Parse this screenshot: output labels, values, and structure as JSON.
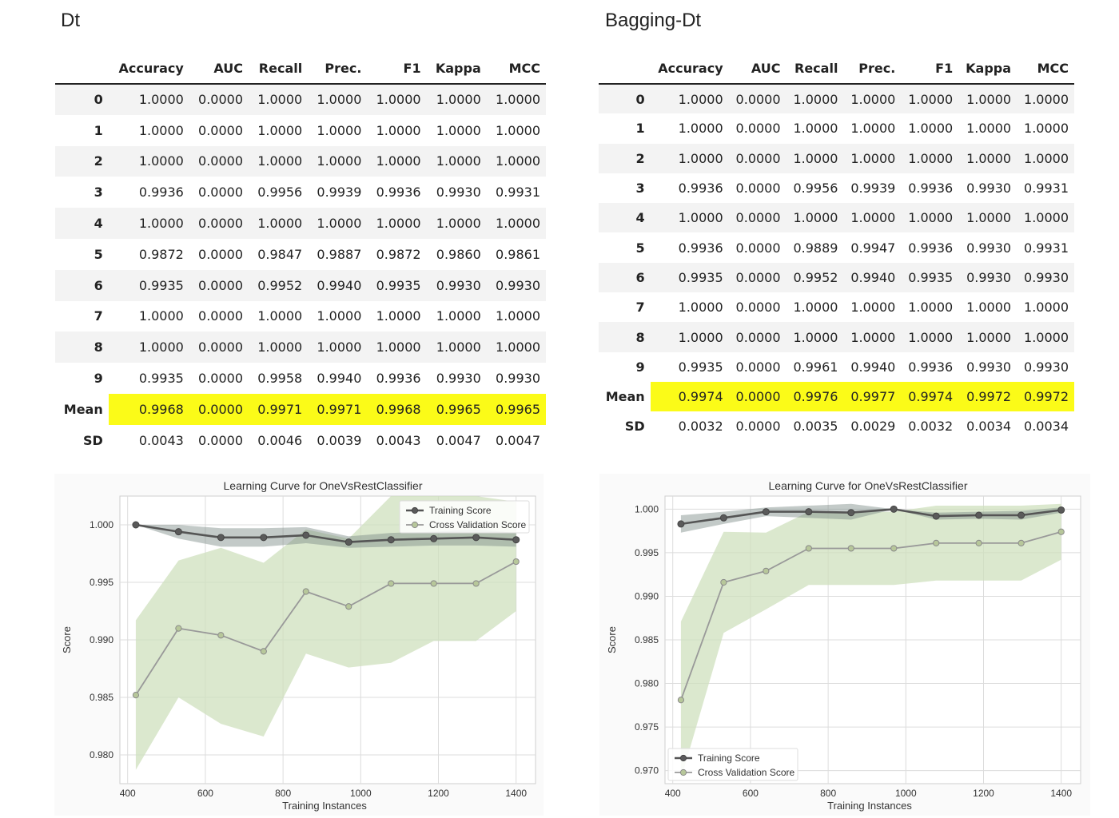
{
  "panels": [
    {
      "title": "Dt",
      "table": {
        "columns": [
          "",
          "Accuracy",
          "AUC",
          "Recall",
          "Prec.",
          "F1",
          "Kappa",
          "MCC"
        ],
        "rows": [
          [
            "0",
            "1.0000",
            "0.0000",
            "1.0000",
            "1.0000",
            "1.0000",
            "1.0000",
            "1.0000"
          ],
          [
            "1",
            "1.0000",
            "0.0000",
            "1.0000",
            "1.0000",
            "1.0000",
            "1.0000",
            "1.0000"
          ],
          [
            "2",
            "1.0000",
            "0.0000",
            "1.0000",
            "1.0000",
            "1.0000",
            "1.0000",
            "1.0000"
          ],
          [
            "3",
            "0.9936",
            "0.0000",
            "0.9956",
            "0.9939",
            "0.9936",
            "0.9930",
            "0.9931"
          ],
          [
            "4",
            "1.0000",
            "0.0000",
            "1.0000",
            "1.0000",
            "1.0000",
            "1.0000",
            "1.0000"
          ],
          [
            "5",
            "0.9872",
            "0.0000",
            "0.9847",
            "0.9887",
            "0.9872",
            "0.9860",
            "0.9861"
          ],
          [
            "6",
            "0.9935",
            "0.0000",
            "0.9952",
            "0.9940",
            "0.9935",
            "0.9930",
            "0.9930"
          ],
          [
            "7",
            "1.0000",
            "0.0000",
            "1.0000",
            "1.0000",
            "1.0000",
            "1.0000",
            "1.0000"
          ],
          [
            "8",
            "1.0000",
            "0.0000",
            "1.0000",
            "1.0000",
            "1.0000",
            "1.0000",
            "1.0000"
          ],
          [
            "9",
            "0.9935",
            "0.0000",
            "0.9958",
            "0.9940",
            "0.9936",
            "0.9930",
            "0.9930"
          ],
          [
            "Mean",
            "0.9968",
            "0.0000",
            "0.9971",
            "0.9971",
            "0.9968",
            "0.9965",
            "0.9965"
          ],
          [
            "SD",
            "0.0043",
            "0.0000",
            "0.0046",
            "0.0039",
            "0.0043",
            "0.0047",
            "0.0047"
          ]
        ],
        "highlight_row": "Mean",
        "highlight_color": "#fbfb18"
      }
    },
    {
      "title": "Bagging-Dt",
      "table": {
        "columns": [
          "",
          "Accuracy",
          "AUC",
          "Recall",
          "Prec.",
          "F1",
          "Kappa",
          "MCC"
        ],
        "rows": [
          [
            "0",
            "1.0000",
            "0.0000",
            "1.0000",
            "1.0000",
            "1.0000",
            "1.0000",
            "1.0000"
          ],
          [
            "1",
            "1.0000",
            "0.0000",
            "1.0000",
            "1.0000",
            "1.0000",
            "1.0000",
            "1.0000"
          ],
          [
            "2",
            "1.0000",
            "0.0000",
            "1.0000",
            "1.0000",
            "1.0000",
            "1.0000",
            "1.0000"
          ],
          [
            "3",
            "0.9936",
            "0.0000",
            "0.9956",
            "0.9939",
            "0.9936",
            "0.9930",
            "0.9931"
          ],
          [
            "4",
            "1.0000",
            "0.0000",
            "1.0000",
            "1.0000",
            "1.0000",
            "1.0000",
            "1.0000"
          ],
          [
            "5",
            "0.9936",
            "0.0000",
            "0.9889",
            "0.9947",
            "0.9936",
            "0.9930",
            "0.9931"
          ],
          [
            "6",
            "0.9935",
            "0.0000",
            "0.9952",
            "0.9940",
            "0.9935",
            "0.9930",
            "0.9930"
          ],
          [
            "7",
            "1.0000",
            "0.0000",
            "1.0000",
            "1.0000",
            "1.0000",
            "1.0000",
            "1.0000"
          ],
          [
            "8",
            "1.0000",
            "0.0000",
            "1.0000",
            "1.0000",
            "1.0000",
            "1.0000",
            "1.0000"
          ],
          [
            "9",
            "0.9935",
            "0.0000",
            "0.9961",
            "0.9940",
            "0.9936",
            "0.9930",
            "0.9930"
          ],
          [
            "Mean",
            "0.9974",
            "0.0000",
            "0.9976",
            "0.9977",
            "0.9974",
            "0.9972",
            "0.9972"
          ],
          [
            "SD",
            "0.0032",
            "0.0000",
            "0.0035",
            "0.0029",
            "0.0032",
            "0.0034",
            "0.0034"
          ]
        ],
        "highlight_row": "Mean",
        "highlight_color": "#fbfb18"
      }
    }
  ],
  "chart_data": [
    {
      "type": "line",
      "title": "Learning Curve for OneVsRestClassifier",
      "xlabel": "Training Instances",
      "ylabel": "Score",
      "xlim": [
        380,
        1450
      ],
      "ylim": [
        0.9775,
        1.0025
      ],
      "xticks": [
        400,
        600,
        800,
        1000,
        1200,
        1400
      ],
      "yticks": [
        0.98,
        0.985,
        0.99,
        0.995,
        1.0
      ],
      "ytick_labels": [
        "0.980",
        "0.985",
        "0.990",
        "0.995",
        "1.000"
      ],
      "grid": true,
      "legend_position": "top-right",
      "x": [
        421,
        531,
        640,
        750,
        859,
        969,
        1078,
        1188,
        1297,
        1400
      ],
      "series": [
        {
          "name": "Training Score",
          "color": "#555555",
          "values": [
            1.0,
            0.9994,
            0.9989,
            0.9989,
            0.9991,
            0.9985,
            0.9987,
            0.9988,
            0.9989,
            0.9987
          ],
          "band_lower": [
            1.0,
            0.9988,
            0.9981,
            0.9981,
            0.9984,
            0.998,
            0.9981,
            0.9982,
            0.9982,
            0.9981
          ],
          "band_upper": [
            1.0,
            1.0,
            0.9997,
            0.9997,
            0.9998,
            0.999,
            0.9993,
            0.9994,
            0.9996,
            0.9993
          ],
          "band_color": "#7a8a84"
        },
        {
          "name": "Cross Validation Score",
          "color": "#999999",
          "values": [
            0.9852,
            0.991,
            0.9904,
            0.989,
            0.9942,
            0.9929,
            0.9949,
            0.9949,
            0.9949,
            0.9968
          ],
          "band_lower": [
            0.9787,
            0.985,
            0.9827,
            0.9816,
            0.9888,
            0.9876,
            0.988,
            0.9899,
            0.9899,
            0.9925
          ],
          "band_upper": [
            0.9917,
            0.9969,
            0.998,
            0.9967,
            0.9996,
            0.9988,
            1.0025,
            1.0025,
            1.0025,
            1.002
          ],
          "band_color": "#cfe0bd"
        }
      ]
    },
    {
      "type": "line",
      "title": "Learning Curve for OneVsRestClassifier",
      "xlabel": "Training Instances",
      "ylabel": "Score",
      "xlim": [
        380,
        1450
      ],
      "ylim": [
        0.9685,
        1.0015
      ],
      "xticks": [
        400,
        600,
        800,
        1000,
        1200,
        1400
      ],
      "yticks": [
        0.97,
        0.975,
        0.98,
        0.985,
        0.99,
        0.995,
        1.0
      ],
      "ytick_labels": [
        "0.970",
        "0.975",
        "0.980",
        "0.985",
        "0.990",
        "0.995",
        "1.000"
      ],
      "grid": true,
      "legend_position": "bottom-left",
      "x": [
        421,
        531,
        640,
        750,
        859,
        969,
        1078,
        1188,
        1297,
        1400
      ],
      "series": [
        {
          "name": "Training Score",
          "color": "#555555",
          "values": [
            0.9983,
            0.999,
            0.9997,
            0.9997,
            0.9996,
            1.0,
            0.9992,
            0.9993,
            0.9993,
            0.9999
          ],
          "band_lower": [
            0.9973,
            0.9983,
            0.9992,
            0.999,
            0.9988,
            1.0,
            0.9988,
            0.9989,
            0.9988,
            0.9996
          ],
          "band_upper": [
            0.9993,
            0.9997,
            1.0002,
            1.0004,
            1.0006,
            1.0,
            0.9996,
            0.9997,
            0.9998,
            1.0002
          ],
          "band_color": "#7a8a84"
        },
        {
          "name": "Cross Validation Score",
          "color": "#999999",
          "values": [
            0.9781,
            0.9916,
            0.9929,
            0.9955,
            0.9955,
            0.9955,
            0.9961,
            0.9961,
            0.9961,
            0.9974
          ],
          "band_lower": [
            0.969,
            0.9858,
            0.9885,
            0.9913,
            0.9913,
            0.9913,
            0.9918,
            0.9918,
            0.9918,
            0.9942
          ],
          "band_upper": [
            0.9871,
            0.9974,
            0.9973,
            0.9997,
            0.9997,
            0.9997,
            1.0004,
            1.0004,
            1.0004,
            1.0006
          ],
          "band_color": "#cfe0bd"
        }
      ]
    }
  ]
}
